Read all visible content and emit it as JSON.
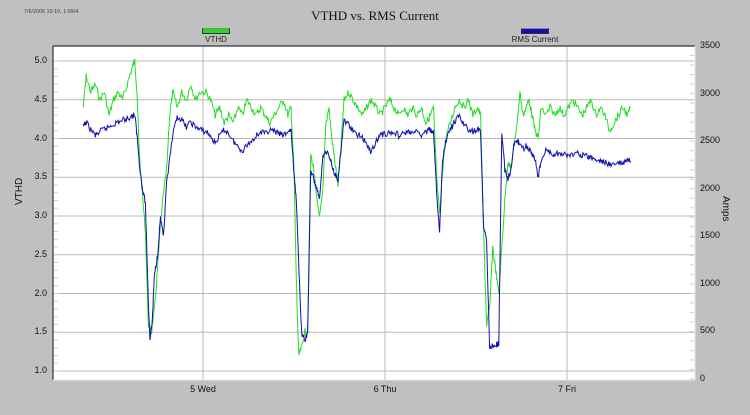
{
  "header": {
    "timestamp_text": "7/6/2005 10:10, 1:09/4",
    "title": "VTHD vs. RMS Current"
  },
  "legend": [
    {
      "label": "VTHD",
      "color": "#22dd22"
    },
    {
      "label": "RMS Current",
      "color": "#1010b0"
    }
  ],
  "chart_data": {
    "type": "line",
    "title": "VTHD vs. RMS Current",
    "xlabel": "",
    "ylabel": "VTHD",
    "y2label": "Amps",
    "ylim": [
      1.0,
      5.0
    ],
    "y2lim": [
      0,
      3500
    ],
    "grid": true,
    "legend_position": "top",
    "x_ticks": [
      {
        "label": "5 Wed",
        "hour": 24
      },
      {
        "label": "6 Thu",
        "hour": 48
      },
      {
        "label": "7 Fri",
        "hour": 72
      }
    ],
    "y_ticks": [
      "5.0",
      "4.5",
      "4.0",
      "3.5",
      "3.0",
      "2.5",
      "2.0",
      "1.5",
      "1.0"
    ],
    "y2_ticks": [
      "3500",
      "3000",
      "2500",
      "2000",
      "1500",
      "1000",
      "500",
      "0"
    ],
    "x_unit": "hours since 4 Tue 00:00",
    "series": [
      {
        "name": "VTHD",
        "axis": "left",
        "color": "#22dd22",
        "points": [
          [
            8.2,
            4.4
          ],
          [
            8.6,
            4.8
          ],
          [
            9.2,
            4.6
          ],
          [
            9.8,
            4.7
          ],
          [
            10.4,
            4.5
          ],
          [
            11.0,
            4.6
          ],
          [
            11.6,
            4.3
          ],
          [
            12.2,
            4.5
          ],
          [
            12.8,
            4.6
          ],
          [
            13.4,
            4.5
          ],
          [
            14.0,
            4.7
          ],
          [
            14.6,
            4.9
          ],
          [
            15.0,
            5.0
          ],
          [
            15.3,
            4.6
          ],
          [
            15.6,
            3.8
          ],
          [
            16.0,
            3.3
          ],
          [
            16.4,
            2.8
          ],
          [
            16.8,
            1.6
          ],
          [
            17.2,
            1.5
          ],
          [
            17.6,
            1.8
          ],
          [
            18.0,
            2.3
          ],
          [
            18.4,
            2.9
          ],
          [
            18.8,
            3.3
          ],
          [
            19.2,
            3.6
          ],
          [
            19.6,
            4.3
          ],
          [
            20.0,
            4.6
          ],
          [
            20.6,
            4.4
          ],
          [
            21.2,
            4.6
          ],
          [
            21.8,
            4.5
          ],
          [
            22.4,
            4.7
          ],
          [
            23.0,
            4.5
          ],
          [
            23.6,
            4.6
          ],
          [
            24.4,
            4.6
          ],
          [
            25.0,
            4.5
          ],
          [
            25.6,
            4.3
          ],
          [
            26.2,
            4.4
          ],
          [
            26.8,
            4.2
          ],
          [
            27.4,
            4.3
          ],
          [
            28.0,
            4.2
          ],
          [
            28.6,
            4.4
          ],
          [
            29.2,
            4.3
          ],
          [
            29.8,
            4.5
          ],
          [
            30.4,
            4.4
          ],
          [
            31.0,
            4.3
          ],
          [
            31.6,
            4.4
          ],
          [
            32.2,
            4.3
          ],
          [
            32.8,
            4.2
          ],
          [
            33.4,
            4.3
          ],
          [
            34.0,
            4.4
          ],
          [
            34.6,
            4.5
          ],
          [
            35.2,
            4.3
          ],
          [
            35.6,
            4.4
          ],
          [
            36.0,
            3.6
          ],
          [
            36.3,
            2.2
          ],
          [
            36.6,
            1.2
          ],
          [
            37.0,
            1.3
          ],
          [
            37.4,
            1.5
          ],
          [
            37.8,
            1.5
          ],
          [
            38.2,
            3.8
          ],
          [
            38.6,
            3.6
          ],
          [
            39.0,
            3.2
          ],
          [
            39.4,
            3.0
          ],
          [
            39.8,
            3.3
          ],
          [
            40.2,
            4.2
          ],
          [
            40.6,
            4.4
          ],
          [
            41.0,
            4.0
          ],
          [
            41.4,
            3.7
          ],
          [
            41.8,
            3.4
          ],
          [
            42.2,
            3.9
          ],
          [
            42.6,
            4.5
          ],
          [
            43.2,
            4.6
          ],
          [
            43.8,
            4.5
          ],
          [
            44.4,
            4.4
          ],
          [
            45.0,
            4.3
          ],
          [
            45.6,
            4.4
          ],
          [
            46.2,
            4.5
          ],
          [
            46.8,
            4.4
          ],
          [
            47.4,
            4.3
          ],
          [
            48.0,
            4.4
          ],
          [
            48.6,
            4.5
          ],
          [
            49.2,
            4.4
          ],
          [
            49.8,
            4.3
          ],
          [
            50.4,
            4.4
          ],
          [
            51.0,
            4.3
          ],
          [
            51.6,
            4.4
          ],
          [
            52.2,
            4.3
          ],
          [
            52.8,
            4.4
          ],
          [
            53.4,
            4.2
          ],
          [
            54.0,
            4.3
          ],
          [
            54.4,
            4.4
          ],
          [
            54.8,
            3.5
          ],
          [
            55.2,
            3.0
          ],
          [
            55.6,
            3.6
          ],
          [
            56.0,
            4.0
          ],
          [
            56.6,
            4.2
          ],
          [
            57.2,
            4.4
          ],
          [
            57.8,
            4.5
          ],
          [
            58.4,
            4.4
          ],
          [
            59.0,
            4.5
          ],
          [
            59.6,
            4.3
          ],
          [
            60.2,
            4.4
          ],
          [
            60.6,
            4.3
          ],
          [
            61.0,
            2.8
          ],
          [
            61.4,
            1.6
          ],
          [
            61.8,
            1.8
          ],
          [
            62.2,
            2.6
          ],
          [
            62.6,
            2.3
          ],
          [
            63.0,
            2.0
          ],
          [
            63.4,
            2.6
          ],
          [
            63.8,
            3.2
          ],
          [
            64.2,
            3.7
          ],
          [
            64.6,
            3.6
          ],
          [
            65.0,
            3.9
          ],
          [
            65.4,
            4.2
          ],
          [
            65.8,
            4.6
          ],
          [
            66.2,
            4.3
          ],
          [
            66.6,
            4.4
          ],
          [
            67.0,
            4.5
          ],
          [
            67.4,
            4.3
          ],
          [
            67.8,
            4.1
          ],
          [
            68.2,
            4.0
          ],
          [
            68.6,
            4.4
          ],
          [
            69.2,
            4.3
          ],
          [
            69.8,
            4.4
          ],
          [
            70.4,
            4.3
          ],
          [
            71.0,
            4.4
          ],
          [
            71.6,
            4.3
          ],
          [
            72.2,
            4.4
          ],
          [
            72.8,
            4.5
          ],
          [
            73.4,
            4.4
          ],
          [
            74.0,
            4.3
          ],
          [
            74.6,
            4.4
          ],
          [
            75.2,
            4.5
          ],
          [
            75.8,
            4.3
          ],
          [
            76.4,
            4.4
          ],
          [
            77.0,
            4.3
          ],
          [
            77.6,
            4.1
          ],
          [
            78.2,
            4.2
          ],
          [
            78.8,
            4.3
          ],
          [
            79.4,
            4.4
          ],
          [
            80.0,
            4.3
          ],
          [
            80.4,
            4.4
          ]
        ]
      },
      {
        "name": "RMS Current",
        "axis": "right",
        "color": "#1010b0",
        "points": [
          [
            8.2,
            2650
          ],
          [
            8.6,
            2700
          ],
          [
            9.2,
            2620
          ],
          [
            9.8,
            2560
          ],
          [
            10.4,
            2600
          ],
          [
            11.0,
            2630
          ],
          [
            11.6,
            2650
          ],
          [
            12.2,
            2680
          ],
          [
            12.8,
            2700
          ],
          [
            13.4,
            2720
          ],
          [
            14.0,
            2740
          ],
          [
            14.6,
            2760
          ],
          [
            15.0,
            2780
          ],
          [
            15.3,
            2560
          ],
          [
            15.6,
            2280
          ],
          [
            16.0,
            2000
          ],
          [
            16.4,
            1850
          ],
          [
            16.8,
            800
          ],
          [
            17.0,
            420
          ],
          [
            17.3,
            600
          ],
          [
            17.6,
            1100
          ],
          [
            18.0,
            1300
          ],
          [
            18.4,
            1700
          ],
          [
            18.8,
            1500
          ],
          [
            19.2,
            2050
          ],
          [
            19.6,
            2300
          ],
          [
            20.0,
            2550
          ],
          [
            20.6,
            2760
          ],
          [
            21.2,
            2720
          ],
          [
            21.8,
            2650
          ],
          [
            22.4,
            2700
          ],
          [
            23.0,
            2650
          ],
          [
            23.6,
            2620
          ],
          [
            24.4,
            2600
          ],
          [
            25.0,
            2550
          ],
          [
            25.6,
            2480
          ],
          [
            26.2,
            2560
          ],
          [
            26.8,
            2620
          ],
          [
            27.4,
            2580
          ],
          [
            28.0,
            2500
          ],
          [
            28.6,
            2440
          ],
          [
            29.2,
            2400
          ],
          [
            29.8,
            2460
          ],
          [
            30.4,
            2500
          ],
          [
            31.0,
            2560
          ],
          [
            31.6,
            2600
          ],
          [
            32.2,
            2580
          ],
          [
            32.8,
            2620
          ],
          [
            33.4,
            2600
          ],
          [
            34.0,
            2580
          ],
          [
            34.6,
            2560
          ],
          [
            35.2,
            2600
          ],
          [
            35.6,
            2620
          ],
          [
            36.0,
            2150
          ],
          [
            36.3,
            1900
          ],
          [
            36.6,
            1250
          ],
          [
            37.0,
            480
          ],
          [
            37.4,
            400
          ],
          [
            37.8,
            480
          ],
          [
            38.2,
            2200
          ],
          [
            38.6,
            2100
          ],
          [
            39.0,
            2000
          ],
          [
            39.4,
            1900
          ],
          [
            39.8,
            2350
          ],
          [
            40.2,
            2400
          ],
          [
            40.6,
            2350
          ],
          [
            41.0,
            2250
          ],
          [
            41.4,
            2150
          ],
          [
            41.8,
            2100
          ],
          [
            42.2,
            2400
          ],
          [
            42.6,
            2720
          ],
          [
            43.2,
            2680
          ],
          [
            43.8,
            2600
          ],
          [
            44.4,
            2560
          ],
          [
            45.0,
            2550
          ],
          [
            45.6,
            2460
          ],
          [
            46.2,
            2380
          ],
          [
            46.8,
            2500
          ],
          [
            47.4,
            2560
          ],
          [
            48.0,
            2580
          ],
          [
            48.6,
            2580
          ],
          [
            49.2,
            2600
          ],
          [
            49.8,
            2560
          ],
          [
            50.4,
            2580
          ],
          [
            51.0,
            2600
          ],
          [
            51.6,
            2580
          ],
          [
            52.2,
            2600
          ],
          [
            52.8,
            2560
          ],
          [
            53.4,
            2600
          ],
          [
            54.0,
            2620
          ],
          [
            54.4,
            2600
          ],
          [
            54.8,
            1950
          ],
          [
            55.2,
            1550
          ],
          [
            55.6,
            2300
          ],
          [
            56.0,
            2500
          ],
          [
            56.6,
            2620
          ],
          [
            57.2,
            2700
          ],
          [
            57.8,
            2760
          ],
          [
            58.4,
            2680
          ],
          [
            59.0,
            2620
          ],
          [
            59.6,
            2600
          ],
          [
            60.2,
            2620
          ],
          [
            60.6,
            2600
          ],
          [
            61.0,
            1600
          ],
          [
            61.4,
            1450
          ],
          [
            61.8,
            350
          ],
          [
            62.2,
            340
          ],
          [
            62.6,
            360
          ],
          [
            63.0,
            370
          ],
          [
            63.4,
            2600
          ],
          [
            63.8,
            2200
          ],
          [
            64.2,
            2100
          ],
          [
            64.6,
            2200
          ],
          [
            65.0,
            2450
          ],
          [
            65.4,
            2500
          ],
          [
            65.8,
            2480
          ],
          [
            66.2,
            2420
          ],
          [
            66.6,
            2450
          ],
          [
            67.0,
            2420
          ],
          [
            67.4,
            2380
          ],
          [
            67.8,
            2300
          ],
          [
            68.2,
            2120
          ],
          [
            68.6,
            2300
          ],
          [
            69.2,
            2400
          ],
          [
            69.8,
            2380
          ],
          [
            70.4,
            2350
          ],
          [
            71.0,
            2380
          ],
          [
            71.6,
            2360
          ],
          [
            72.2,
            2340
          ],
          [
            72.8,
            2360
          ],
          [
            73.4,
            2380
          ],
          [
            74.0,
            2350
          ],
          [
            74.6,
            2340
          ],
          [
            75.2,
            2320
          ],
          [
            75.8,
            2300
          ],
          [
            76.4,
            2290
          ],
          [
            77.0,
            2280
          ],
          [
            77.6,
            2260
          ],
          [
            78.2,
            2250
          ],
          [
            78.8,
            2270
          ],
          [
            79.4,
            2260
          ],
          [
            80.0,
            2300
          ],
          [
            80.4,
            2290
          ]
        ]
      }
    ]
  }
}
